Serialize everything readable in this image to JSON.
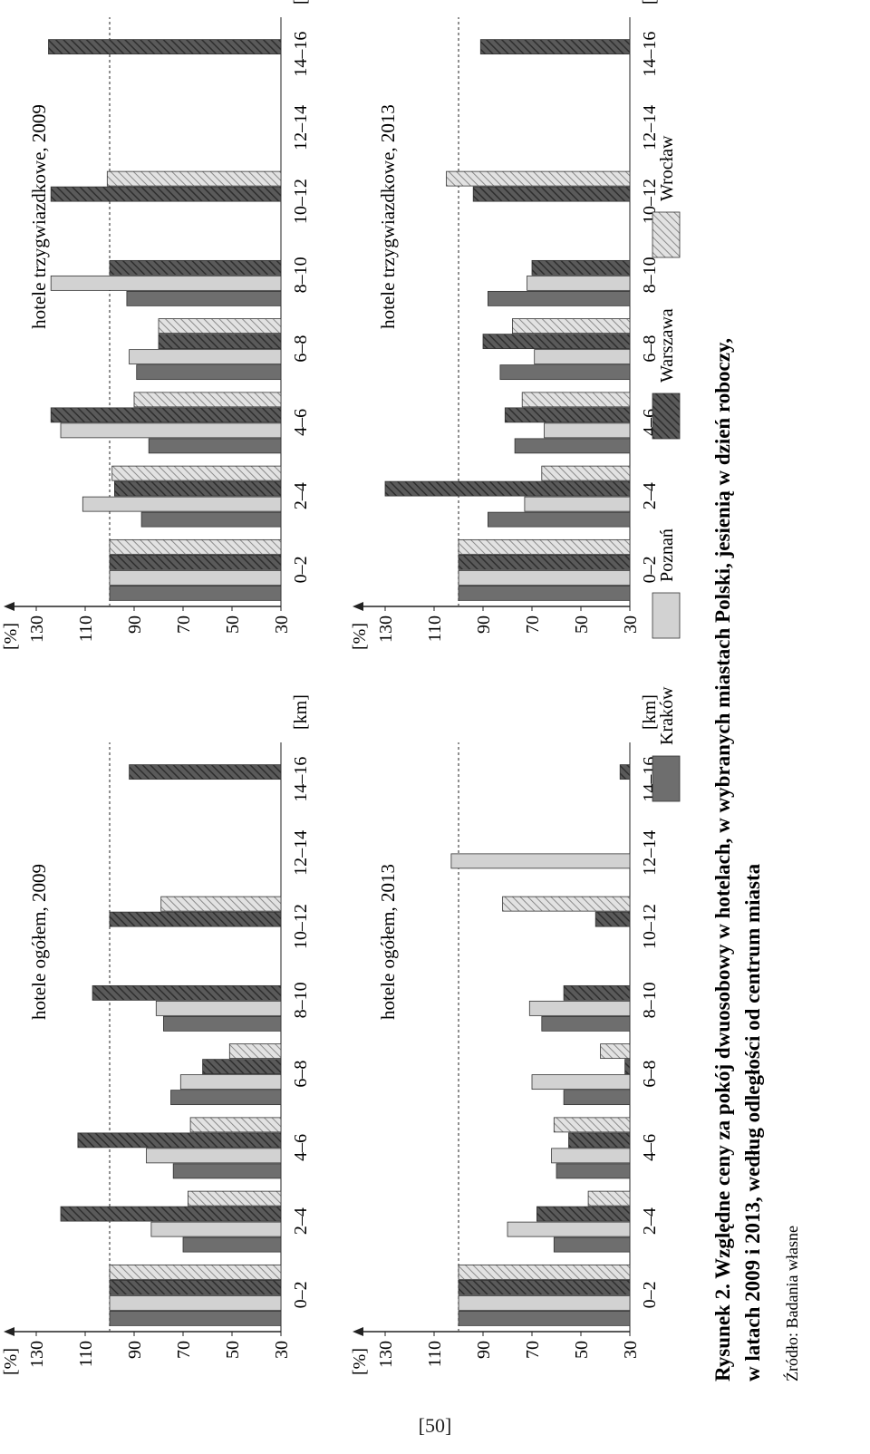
{
  "page_number": "[50]",
  "caption": {
    "title": "Rysunek 2. Względne ceny za pokój dwuosobowy w hotelach, w wybranych miastach Polski, jesienią w dzień roboczy,",
    "title_line2": "w latach 2009 i 2013, według odległości od centrum miasta",
    "source": "Źródło: Badania własne"
  },
  "legend": [
    {
      "name": "Kraków",
      "pattern": "dark"
    },
    {
      "name": "Poznań",
      "pattern": "light"
    },
    {
      "name": "Warszawa",
      "pattern": "darkhatch"
    },
    {
      "name": "Wrocław",
      "pattern": "lighthatch"
    }
  ],
  "colors": {
    "dark": "#6e6e6e",
    "light": "#d2d2d2",
    "darkhatch": "#555555",
    "lighthatch": "#b8b8b8",
    "stroke": "#333333"
  },
  "chart_data": [
    {
      "type": "bar",
      "title": "hotele ogółem, 2009",
      "ylabel": "[%]",
      "xlabel": "[km]",
      "ylim": [
        30,
        130
      ],
      "yticks": [
        30,
        50,
        70,
        90,
        110,
        130
      ],
      "reference_line": 100,
      "categories": [
        "0–2",
        "2–4",
        "4–6",
        "6–8",
        "8–10",
        "10–12",
        "12–14",
        "14–16"
      ],
      "series": [
        {
          "name": "Kraków",
          "values": [
            100,
            70,
            74,
            75,
            78,
            null,
            null,
            null
          ]
        },
        {
          "name": "Poznań",
          "values": [
            100,
            83,
            85,
            71,
            81,
            null,
            null,
            null
          ]
        },
        {
          "name": "Warszawa",
          "values": [
            100,
            120,
            113,
            62,
            107,
            100,
            null,
            92
          ]
        },
        {
          "name": "Wrocław",
          "values": [
            100,
            68,
            67,
            51,
            null,
            79,
            null,
            null
          ]
        }
      ]
    },
    {
      "type": "bar",
      "title": "hotele trzygwiazdkowe, 2009",
      "ylabel": "[%]",
      "xlabel": "[km]",
      "ylim": [
        30,
        130
      ],
      "yticks": [
        30,
        50,
        70,
        90,
        110,
        130
      ],
      "reference_line": 100,
      "categories": [
        "0–2",
        "2–4",
        "4–6",
        "6–8",
        "8–10",
        "10–12",
        "12–14",
        "14–16"
      ],
      "series": [
        {
          "name": "Kraków",
          "values": [
            100,
            87,
            84,
            89,
            93,
            null,
            null,
            null
          ]
        },
        {
          "name": "Poznań",
          "values": [
            100,
            111,
            120,
            92,
            124,
            null,
            null,
            null
          ]
        },
        {
          "name": "Warszawa",
          "values": [
            100,
            98,
            124,
            80,
            100,
            124,
            null,
            125
          ]
        },
        {
          "name": "Wrocław",
          "values": [
            100,
            99,
            90,
            80,
            null,
            101,
            null,
            null
          ]
        }
      ]
    },
    {
      "type": "bar",
      "title": "hotele ogółem, 2013",
      "ylabel": "[%]",
      "xlabel": "[km]",
      "ylim": [
        30,
        130
      ],
      "yticks": [
        30,
        50,
        70,
        90,
        110,
        130
      ],
      "reference_line": 100,
      "categories": [
        "0–2",
        "2–4",
        "4–6",
        "6–8",
        "8–10",
        "10–12",
        "12–14",
        "14–16"
      ],
      "series": [
        {
          "name": "Kraków",
          "values": [
            100,
            61,
            60,
            57,
            66,
            null,
            null,
            null
          ]
        },
        {
          "name": "Poznań",
          "values": [
            100,
            80,
            62,
            70,
            71,
            null,
            103,
            null
          ]
        },
        {
          "name": "Warszawa",
          "values": [
            100,
            68,
            55,
            32,
            57,
            44,
            null,
            34
          ]
        },
        {
          "name": "Wrocław",
          "values": [
            100,
            47,
            61,
            42,
            null,
            82,
            null,
            null
          ]
        }
      ]
    },
    {
      "type": "bar",
      "title": "hotele trzygwiazdkowe, 2013",
      "ylabel": "[%]",
      "xlabel": "[km]",
      "ylim": [
        30,
        130
      ],
      "yticks": [
        30,
        50,
        70,
        90,
        110,
        130
      ],
      "reference_line": 100,
      "categories": [
        "0–2",
        "2–4",
        "4–6",
        "6–8",
        "8–10",
        "10–12",
        "12–14",
        "14–16"
      ],
      "series": [
        {
          "name": "Kraków",
          "values": [
            100,
            88,
            77,
            83,
            88,
            null,
            null,
            null
          ]
        },
        {
          "name": "Poznań",
          "values": [
            100,
            73,
            65,
            69,
            72,
            null,
            null,
            null
          ]
        },
        {
          "name": "Warszawa",
          "values": [
            100,
            138,
            81,
            90,
            70,
            94,
            null,
            91
          ]
        },
        {
          "name": "Wrocław",
          "values": [
            100,
            66,
            74,
            78,
            null,
            105,
            null,
            null
          ]
        }
      ]
    }
  ]
}
